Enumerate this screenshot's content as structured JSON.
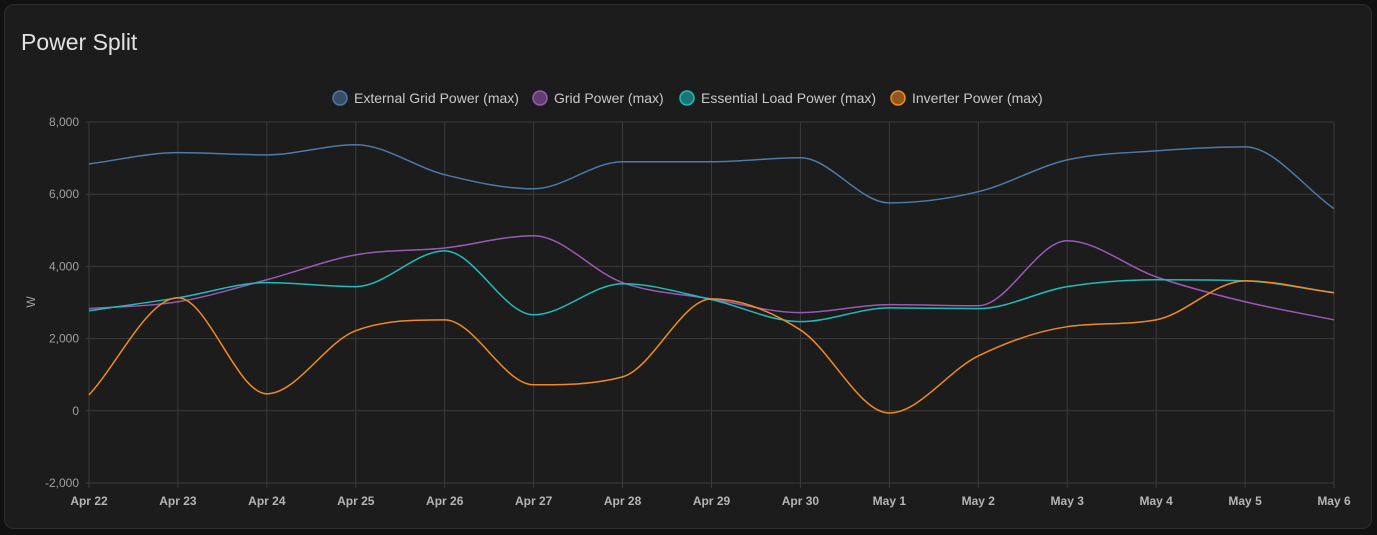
{
  "card": {
    "title": "Power Split"
  },
  "chart_data": {
    "type": "line",
    "title": "Power Split",
    "xlabel": "",
    "ylabel": "W",
    "ylim": [
      -2000,
      8000
    ],
    "yticks": [
      8000,
      6000,
      4000,
      2000,
      0,
      -2000
    ],
    "ytick_labels": [
      "8,000",
      "6,000",
      "4,000",
      "2,000",
      "0",
      "-2,000"
    ],
    "grid": true,
    "legend_position": "top-center",
    "categories": [
      "Apr 22",
      "Apr 23",
      "Apr 24",
      "Apr 25",
      "Apr 26",
      "Apr 27",
      "Apr 28",
      "Apr 29",
      "Apr 30",
      "May 1",
      "May 2",
      "May 3",
      "May 4",
      "May 5",
      "May 6"
    ],
    "series": [
      {
        "name": "External Grid Power (max)",
        "color": "#4d7aa8",
        "values": [
          6840,
          7150,
          7090,
          7370,
          6540,
          6150,
          6900,
          6900,
          7010,
          5760,
          6070,
          6950,
          7200,
          7310,
          5600
        ]
      },
      {
        "name": "Grid Power (max)",
        "color": "#9b59b6",
        "values": [
          2830,
          3020,
          3630,
          4320,
          4510,
          4850,
          3550,
          3100,
          2720,
          2940,
          2910,
          4710,
          3710,
          3020,
          2520
        ]
      },
      {
        "name": "Essential Load Power (max)",
        "color": "#1dbdbd",
        "values": [
          2770,
          3130,
          3550,
          3440,
          4430,
          2660,
          3520,
          3080,
          2470,
          2850,
          2830,
          3440,
          3630,
          3600,
          3270
        ]
      },
      {
        "name": "Inverter Power (max)",
        "color": "#f18a22",
        "values": [
          440,
          3130,
          470,
          2220,
          2520,
          720,
          940,
          3100,
          2240,
          -60,
          1520,
          2330,
          2520,
          3600,
          3270
        ]
      }
    ]
  }
}
